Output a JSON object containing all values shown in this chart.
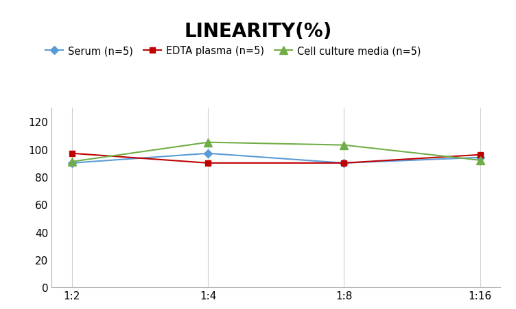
{
  "title": "LINEARITY(%)",
  "title_fontsize": 20,
  "title_fontweight": "bold",
  "x_labels": [
    "1:2",
    "1:4",
    "1:8",
    "1:16"
  ],
  "x_values": [
    0,
    1,
    2,
    3
  ],
  "series": [
    {
      "label": "Serum (n=5)",
      "values": [
        90,
        97,
        90,
        94
      ],
      "color": "#5b9bd5",
      "marker": "D",
      "markersize": 6,
      "linewidth": 1.5
    },
    {
      "label": "EDTA plasma (n=5)",
      "values": [
        97,
        90,
        90,
        96
      ],
      "color": "#c00000",
      "marker": "s",
      "markersize": 6,
      "linewidth": 1.5
    },
    {
      "label": "Cell culture media (n=5)",
      "values": [
        91,
        105,
        103,
        92
      ],
      "color": "#70ad47",
      "marker": "^",
      "markersize": 8,
      "linewidth": 1.5
    }
  ],
  "ylim": [
    0,
    130
  ],
  "yticks": [
    0,
    20,
    40,
    60,
    80,
    100,
    120
  ],
  "background_color": "#ffffff",
  "grid_color": "#d0d0d0",
  "legend_fontsize": 10.5,
  "axis_fontsize": 11
}
